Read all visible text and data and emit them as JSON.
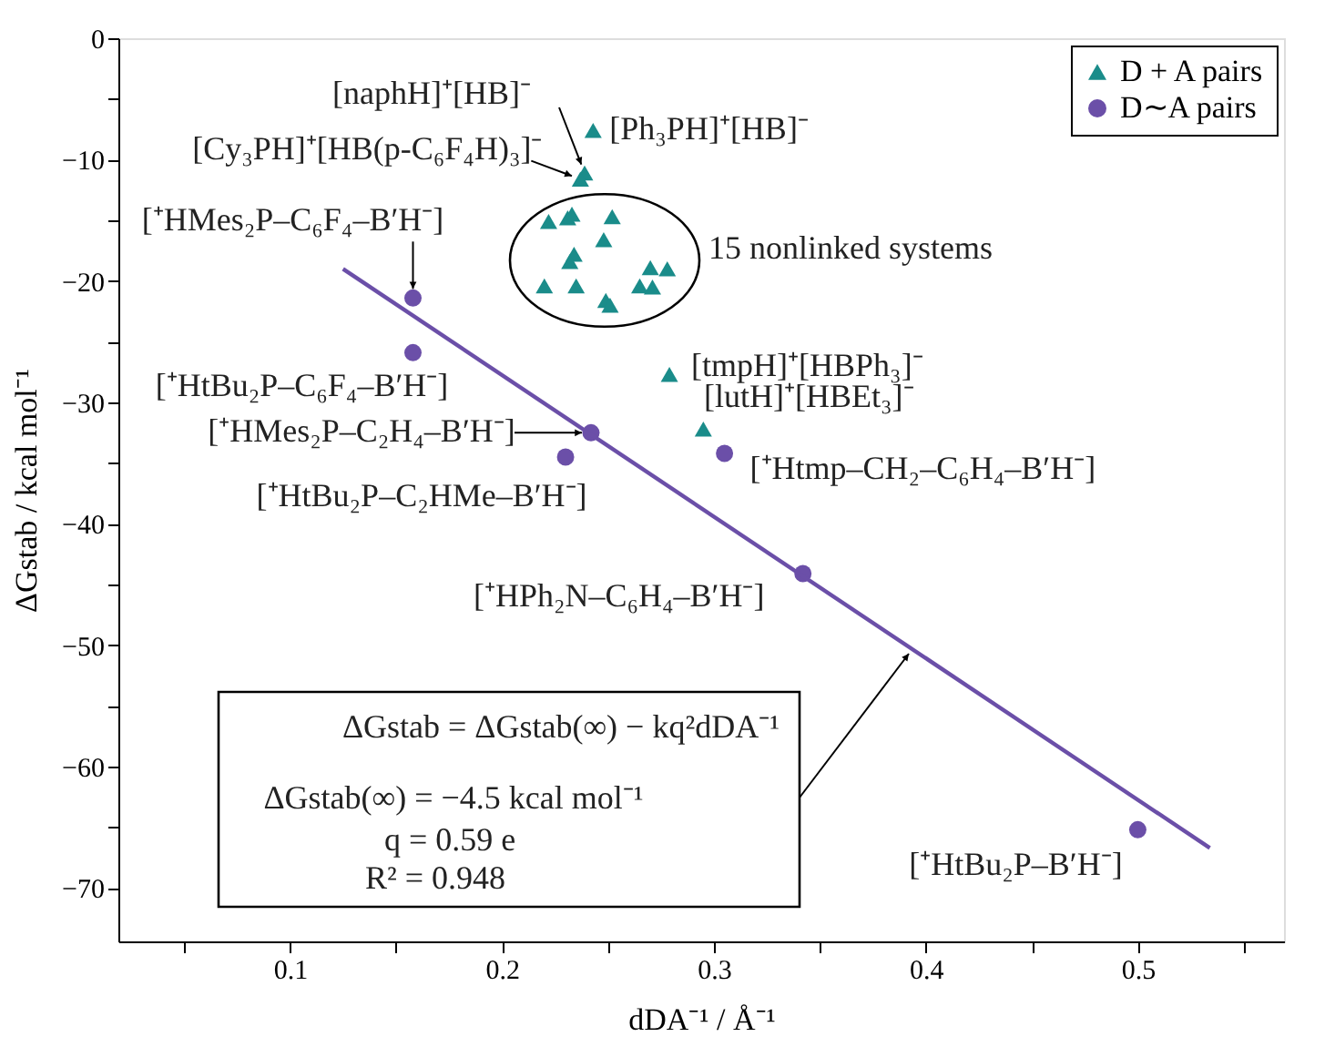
{
  "chart_data": {
    "type": "scatter",
    "xlabel": "dDA⁻¹ / Å⁻¹",
    "ylabel": "ΔGstab / kcal mol⁻¹",
    "xlim": [
      0.019,
      0.569
    ],
    "ylim": [
      -74.4,
      0
    ],
    "xticks": [
      {
        "value": 0.05,
        "label": null
      },
      0.1,
      {
        "value": 0.15,
        "label": null
      },
      0.2,
      {
        "value": 0.25,
        "label": null
      },
      0.3,
      {
        "value": 0.35,
        "label": null
      },
      0.4,
      {
        "value": 0.45,
        "label": null
      },
      0.5,
      {
        "value": 0.55,
        "label": null
      }
    ],
    "yticks": [
      0,
      {
        "value": -5,
        "label": null
      },
      -10,
      {
        "value": -15,
        "label": null
      },
      -20,
      {
        "value": -25,
        "label": null
      },
      -30,
      {
        "value": -35,
        "label": null
      },
      -40,
      {
        "value": -45,
        "label": null
      },
      -50,
      {
        "value": -55,
        "label": null
      },
      -60,
      {
        "value": -65,
        "label": null
      },
      -70
    ],
    "grid": false,
    "legend": "top right",
    "series": [
      {
        "name": "D + A pairs",
        "color": "#1a8c8a",
        "marker": "triangle",
        "x": [
          0.243,
          0.239,
          0.237,
          0.222,
          0.231,
          0.233,
          0.252,
          0.248,
          0.234,
          0.232,
          0.22,
          0.235,
          0.249,
          0.251,
          0.265,
          0.27,
          0.278,
          0.271,
          0.279,
          0.295
        ],
        "values": [
          -7.6,
          -11.1,
          -11.6,
          -15.1,
          -14.8,
          -14.5,
          -14.7,
          -16.6,
          -17.8,
          -18.4,
          -20.4,
          -20.4,
          -21.6,
          -22.0,
          -20.4,
          -18.9,
          -19.0,
          -20.5,
          -27.7,
          -32.2
        ]
      },
      {
        "name": "D∼A pairs",
        "color": "#6b4fa8",
        "marker": "circle",
        "x": [
          0.158,
          0.158,
          0.242,
          0.23,
          0.305,
          0.342,
          0.5
        ],
        "values": [
          -21.4,
          -25.9,
          -32.5,
          -34.5,
          -34.2,
          -44.1,
          -65.2
        ]
      },
      {
        "type": "line",
        "color": "#6b4fa8",
        "marker": "none",
        "x": [
          0.125,
          0.534
        ],
        "values": [
          -19.0,
          -66.7
        ]
      }
    ],
    "annotations": [
      {
        "text": "[Ph₃PH]⁺[HB]⁻",
        "x": 0.243,
        "y": -7.6
      },
      {
        "text": "[naphH]⁺[HB]⁻",
        "x": 0.239,
        "y": -11.1
      },
      {
        "text": "[Cy₃PH]⁺[HB(p-C₆F₄H)₃]⁻",
        "x": 0.237,
        "y": -11.6
      },
      {
        "text": "[⁺HMes₂P–C₆F₄–B′H⁻]",
        "x": 0.158,
        "y": -21.4
      },
      {
        "text": "[⁺HtBu₂P–C₆F₄–B′H⁻]",
        "x": 0.158,
        "y": -25.9
      },
      {
        "text": "[⁺HMes₂P–C₂H₄–B′H⁻]",
        "x": 0.242,
        "y": -32.5
      },
      {
        "text": "[⁺HtBu₂P–C₂HMe–B′H⁻]",
        "x": 0.23,
        "y": -34.5
      },
      {
        "text": "[⁺Htmp–CH₂–C₆H₄–B′H⁻]",
        "x": 0.305,
        "y": -34.2
      },
      {
        "text": "[⁺HPh₂N–C₆H₄–B′H⁻]",
        "x": 0.342,
        "y": -44.1
      },
      {
        "text": "[⁺HtBu₂P–B′H⁻]",
        "x": 0.5,
        "y": -65.2
      },
      {
        "text": "[tmpH]⁺[HBPh₃]⁻",
        "x": 0.279,
        "y": -27.7
      },
      {
        "text": "[lutH]⁺[HBEt₃]⁻",
        "x": 0.295,
        "y": -32.2
      },
      "15 nonlinked systems",
      "ΔGstab = ΔGstab(∞) − kq²dDA⁻¹",
      "ΔGstab(∞) = −4.5 kcal mol⁻¹",
      "q = 0.59 e",
      "R² = 0.948"
    ]
  }
}
